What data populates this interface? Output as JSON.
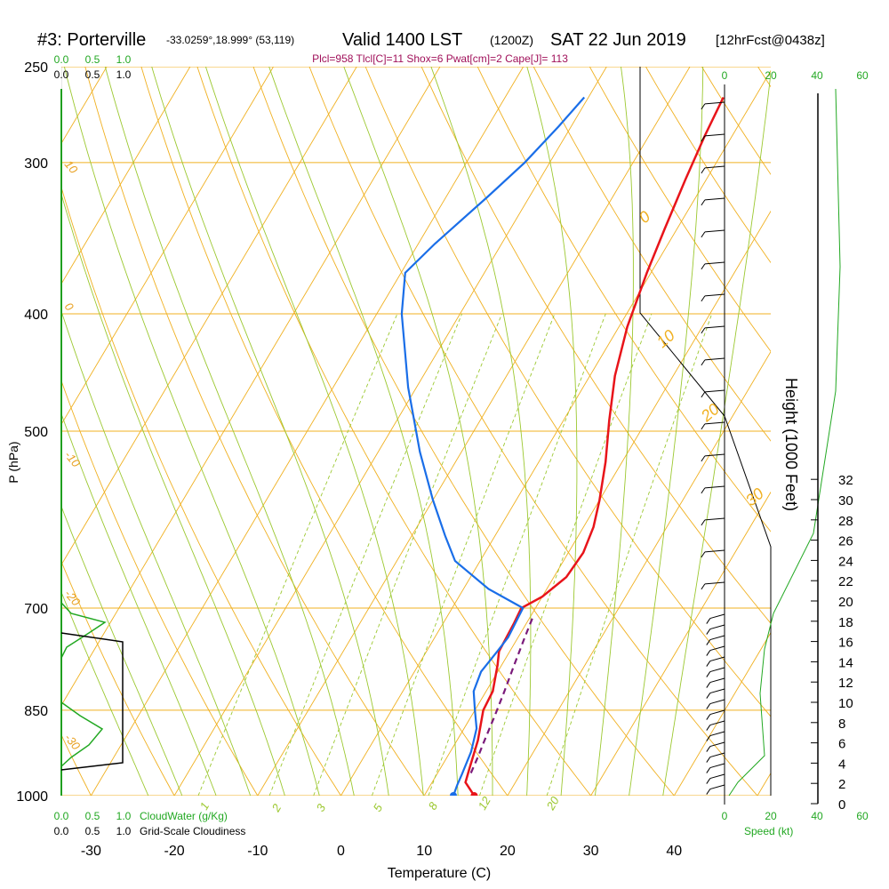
{
  "header": {
    "station": "#3: Porterville",
    "coords": "-33.0259°,18.999° (53,119)",
    "valid": "Valid 1400 LST",
    "utc": "(1200Z)",
    "date": "SAT 22 Jun 2019",
    "fcst": "[12hrFcst@0438z]",
    "indices": "Plcl=958 Tlcl[C]=11 Shox=6 Pwat[cm]=2 Cape[J]= 113"
  },
  "colors": {
    "temperature": "#e8141a",
    "dewpoint": "#1a6ee8",
    "parcel": "#7a1a7a",
    "isotherm": "#f0b020",
    "dry_adiabat": "#f0b020",
    "moist_adiabat": "#9cc830",
    "mixing_ratio": "#9cc830",
    "cloud": "#22a822",
    "indices_text": "#a0105a"
  },
  "chart_data": {
    "type": "line",
    "title": "#3: Porterville",
    "xlabel": "Temperature (C)",
    "ylabel": "P (hPa)",
    "y2label": "Height (1000 Feet)",
    "xlim": [
      -35,
      45
    ],
    "ylim": [
      250,
      1000
    ],
    "y_scale": "log",
    "x_ticks": [
      "-30",
      "-20",
      "-10",
      "0",
      "10",
      "20",
      "30",
      "40"
    ],
    "y_ticks": [
      "250",
      "300",
      "400",
      "500",
      "700",
      "850",
      "1000"
    ],
    "height_ticks": [
      "0",
      "2",
      "4",
      "6",
      "8",
      "10",
      "12",
      "14",
      "16",
      "18",
      "20",
      "22",
      "24",
      "26",
      "28",
      "30",
      "32"
    ],
    "dry_adiabat_labels": [
      "10",
      "0",
      "-10",
      "-20",
      "-30"
    ],
    "upper_labels": [
      "0",
      "10",
      "20",
      "30"
    ],
    "mixing_ratio_labels": [
      "1",
      "2",
      "3",
      "5",
      "8",
      "12",
      "20"
    ],
    "cloudwater_ticks_top": [
      "0.0",
      "0.5",
      "1.0"
    ],
    "cloudwater_ticks_top2": [
      "0.0",
      "0.5",
      "1.0"
    ],
    "cloudwater_ticks_bottom": [
      "0.0",
      "0.5",
      "1.0"
    ],
    "cloudiness_ticks_bottom": [
      "0.0",
      "0.5",
      "1.0"
    ],
    "cloudwater_label": "CloudWater (g/Kg)",
    "cloudiness_label": "Grid-Scale Cloudiness",
    "speed_ticks_top": [
      "0",
      "20",
      "40",
      "60"
    ],
    "speed_ticks_bottom": [
      "0",
      "20",
      "40",
      "60"
    ],
    "speed_label": "Speed (kt)",
    "series": [
      {
        "name": "Temperature",
        "points": [
          [
            16,
            1000
          ],
          [
            14,
            975
          ],
          [
            13.5,
            950
          ],
          [
            12.5,
            900
          ],
          [
            11,
            850
          ],
          [
            10.8,
            820
          ],
          [
            9.5,
            780
          ],
          [
            8.7,
            760
          ],
          [
            8.5,
            720
          ],
          [
            8.3,
            700
          ],
          [
            10,
            685
          ],
          [
            11.5,
            660
          ],
          [
            11.8,
            630
          ],
          [
            11.2,
            600
          ],
          [
            10,
            570
          ],
          [
            8,
            530
          ],
          [
            5.5,
            490
          ],
          [
            3,
            450
          ],
          [
            1,
            410
          ],
          [
            -0.5,
            370
          ],
          [
            -1.5,
            340
          ],
          [
            -2.5,
            310
          ],
          [
            -3.3,
            285
          ],
          [
            -3.8,
            265
          ]
        ]
      },
      {
        "name": "Dewpoint",
        "points": [
          [
            13.5,
            1000
          ],
          [
            13.2,
            980
          ],
          [
            13,
            960
          ],
          [
            12.5,
            920
          ],
          [
            11.5,
            880
          ],
          [
            10,
            850
          ],
          [
            8.5,
            820
          ],
          [
            8,
            790
          ],
          [
            8.5,
            760
          ],
          [
            8.8,
            740
          ],
          [
            8.5,
            700
          ],
          [
            3,
            675
          ],
          [
            -3,
            640
          ],
          [
            -6,
            610
          ],
          [
            -10,
            570
          ],
          [
            -15,
            520
          ],
          [
            -21,
            460
          ],
          [
            -27,
            400
          ],
          [
            -29.5,
            370
          ],
          [
            -28,
            350
          ],
          [
            -25,
            320
          ],
          [
            -23,
            300
          ],
          [
            -21.5,
            280
          ],
          [
            -20.5,
            265
          ]
        ]
      },
      {
        "name": "Parcel",
        "points": [
          [
            14,
            958
          ],
          [
            13.7,
            930
          ],
          [
            13.3,
            900
          ],
          [
            12.8,
            860
          ],
          [
            12.2,
            820
          ],
          [
            11.5,
            780
          ],
          [
            10.8,
            740
          ],
          [
            10.3,
            710
          ]
        ]
      }
    ]
  }
}
